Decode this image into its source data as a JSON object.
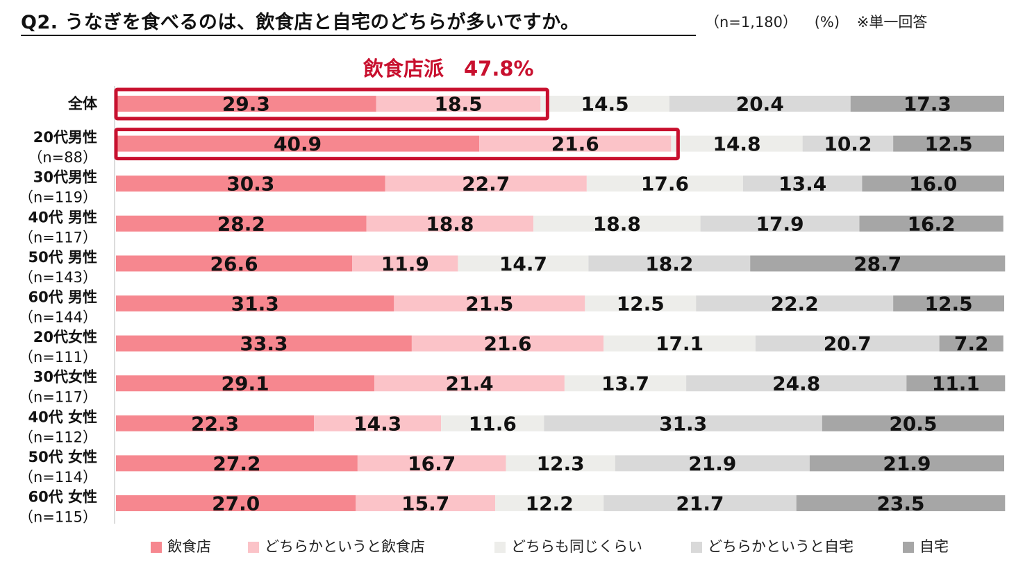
{
  "title": "Q2. うなぎを食べるのは、飲食店と自宅のどちらが多いですか。",
  "meta": {
    "sample": "（n=1,180）",
    "unit": "(%)",
    "note": "※単一回答"
  },
  "callout": "飲食店派　47.8%",
  "colors": {
    "飲食店": "#f6878f",
    "どちらかというと飲食店": "#fbc3c8",
    "どちらも同じくらい": "#ededea",
    "どちらかというと自宅": "#d9d9d9",
    "自宅": "#a6a6a6",
    "highlight": "#c8102e"
  },
  "chart_data": {
    "type": "bar",
    "orientation": "horizontal",
    "stacked": true,
    "title": "Q2. うなぎを食べるのは、飲食店と自宅のどちらが多いですか。",
    "xlim": [
      0,
      100
    ],
    "legend_position": "bottom",
    "categories": [
      {
        "label": "全体",
        "n": ""
      },
      {
        "label": "20代男性",
        "n": "（n=88）"
      },
      {
        "label": "30代男性",
        "n": "（n=119）"
      },
      {
        "label": "40代 男性",
        "n": "（n=117）"
      },
      {
        "label": "50代 男性",
        "n": "（n=143）"
      },
      {
        "label": "60代 男性",
        "n": "（n=144）"
      },
      {
        "label": "20代女性",
        "n": "（n=111）"
      },
      {
        "label": "30代女性",
        "n": "（n=117）"
      },
      {
        "label": "40代 女性",
        "n": "（n=112）"
      },
      {
        "label": "50代 女性",
        "n": "（n=114）"
      },
      {
        "label": "60代 女性",
        "n": "（n=115）"
      }
    ],
    "series": [
      {
        "name": "飲食店",
        "values": [
          29.3,
          40.9,
          30.3,
          28.2,
          26.6,
          31.3,
          33.3,
          29.1,
          22.3,
          27.2,
          27.0
        ]
      },
      {
        "name": "どちらかというと飲食店",
        "values": [
          18.5,
          21.6,
          22.7,
          18.8,
          11.9,
          21.5,
          21.6,
          21.4,
          14.3,
          16.7,
          15.7
        ]
      },
      {
        "name": "どちらも同じくらい",
        "values": [
          14.5,
          14.8,
          17.6,
          18.8,
          14.7,
          12.5,
          17.1,
          13.7,
          11.6,
          12.3,
          12.2
        ]
      },
      {
        "name": "どちらかというと自宅",
        "values": [
          20.4,
          10.2,
          13.4,
          17.9,
          18.2,
          22.2,
          20.7,
          24.8,
          31.3,
          21.9,
          21.7
        ]
      },
      {
        "name": "自宅",
        "values": [
          17.3,
          12.5,
          16.0,
          16.2,
          28.7,
          12.5,
          7.2,
          11.1,
          20.5,
          21.9,
          23.5
        ]
      }
    ],
    "highlighted_rows": [
      0,
      1
    ]
  }
}
